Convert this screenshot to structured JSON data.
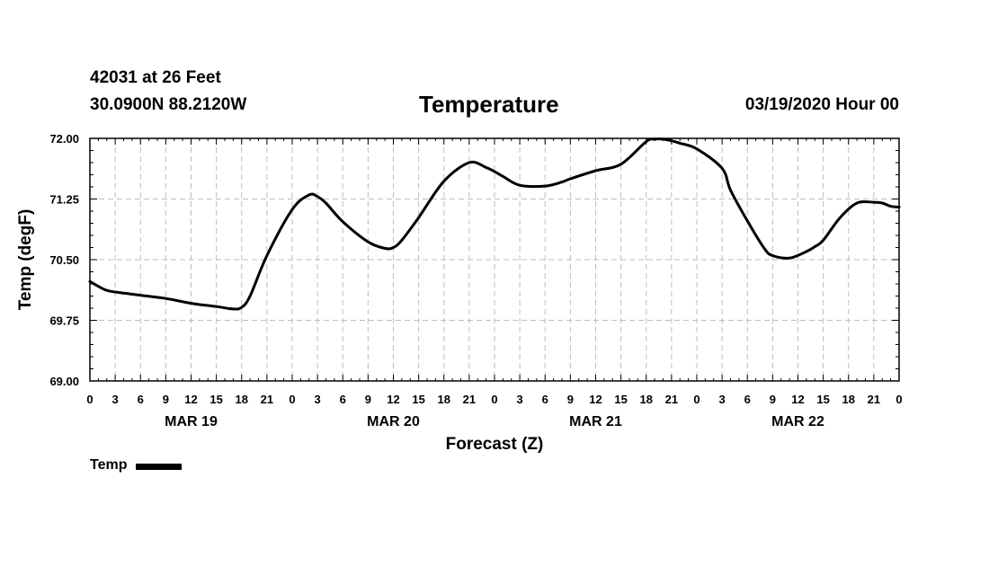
{
  "header": {
    "station": "42031 at 26 Feet",
    "coords": "30.0900N 88.2120W",
    "title": "Temperature",
    "datetime": "03/19/2020 Hour 00"
  },
  "chart_data": {
    "type": "line",
    "title": "Temperature",
    "xlabel": "Forecast (Z)",
    "ylabel": "Temp (degF)",
    "ylim": [
      69.0,
      72.0
    ],
    "xlim": [
      0,
      96
    ],
    "grid": true,
    "y_ticks": [
      "69.00",
      "69.75",
      "70.50",
      "71.25",
      "72.00"
    ],
    "y_tick_values": [
      69.0,
      69.75,
      70.5,
      71.25,
      72.0
    ],
    "x_ticks": [
      "0",
      "3",
      "6",
      "9",
      "12",
      "15",
      "18",
      "21",
      "0",
      "3",
      "6",
      "9",
      "12",
      "15",
      "18",
      "21",
      "0",
      "3",
      "6",
      "9",
      "12",
      "15",
      "18",
      "21",
      "0",
      "3",
      "6",
      "9",
      "12",
      "15",
      "18",
      "21",
      "0"
    ],
    "day_labels": [
      {
        "label": "MAR 19",
        "hour": 12
      },
      {
        "label": "MAR 20",
        "hour": 36
      },
      {
        "label": "MAR 21",
        "hour": 60
      },
      {
        "label": "MAR 22",
        "hour": 84
      }
    ],
    "series": [
      {
        "name": "Temp",
        "x": [
          0,
          1,
          2,
          3,
          6,
          9,
          12,
          15,
          17,
          18,
          19,
          21,
          24,
          26,
          27,
          28,
          30,
          33,
          35,
          36,
          37,
          39,
          42,
          45,
          47,
          48,
          49,
          51,
          54,
          56,
          57,
          60,
          63,
          66,
          67,
          68,
          69,
          70,
          72,
          75,
          76,
          78,
          80,
          81,
          83,
          85,
          86,
          87,
          89,
          91,
          93,
          94,
          95,
          96
        ],
        "values": [
          70.23,
          70.17,
          70.12,
          70.1,
          70.06,
          70.02,
          69.96,
          69.92,
          69.89,
          69.91,
          70.05,
          70.55,
          71.12,
          71.3,
          71.28,
          71.2,
          70.97,
          70.72,
          70.64,
          70.65,
          70.74,
          71.02,
          71.47,
          71.7,
          71.64,
          71.59,
          71.53,
          71.42,
          71.41,
          71.46,
          71.5,
          71.6,
          71.68,
          71.96,
          71.99,
          71.99,
          71.97,
          71.94,
          71.87,
          71.63,
          71.36,
          70.98,
          70.64,
          70.55,
          70.52,
          70.6,
          70.66,
          70.74,
          71.02,
          71.2,
          71.21,
          71.2,
          71.16,
          71.15
        ]
      }
    ]
  },
  "legend": {
    "label": "Temp"
  }
}
